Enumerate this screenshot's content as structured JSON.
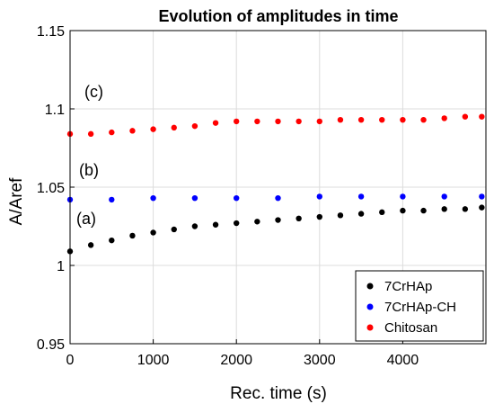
{
  "chart_data": {
    "type": "scatter",
    "title": "Evolution of amplitudes in time",
    "xlabel": "Rec. time (s)",
    "ylabel": "A/Aref",
    "xlim": [
      0,
      5000
    ],
    "ylim": [
      0.95,
      1.15
    ],
    "xticks": [
      0,
      1000,
      2000,
      3000,
      4000
    ],
    "yticks": [
      0.95,
      1,
      1.05,
      1.1,
      1.15
    ],
    "xtick_labels": [
      "0",
      "1000",
      "2000",
      "3000",
      "4000"
    ],
    "ytick_labels": [
      "0.95",
      "1",
      "1.05",
      "1.1",
      "1.15"
    ],
    "grid": true,
    "legend_position": "bottom-right",
    "series": [
      {
        "name": "7CrHAp",
        "color": "#000000",
        "label": "(a)",
        "x": [
          0,
          250,
          500,
          750,
          1000,
          1250,
          1500,
          1750,
          2000,
          2250,
          2500,
          2750,
          3000,
          3250,
          3500,
          3750,
          4000,
          4250,
          4500,
          4750,
          4950
        ],
        "y": [
          1.009,
          1.013,
          1.016,
          1.019,
          1.021,
          1.023,
          1.025,
          1.026,
          1.027,
          1.028,
          1.029,
          1.03,
          1.031,
          1.032,
          1.033,
          1.034,
          1.035,
          1.035,
          1.036,
          1.036,
          1.037
        ]
      },
      {
        "name": "7CrHAp-CH",
        "color": "#0000ff",
        "label": "(b)",
        "x": [
          0,
          500,
          1000,
          1500,
          2000,
          2500,
          3000,
          3500,
          4000,
          4500,
          4950
        ],
        "y": [
          1.042,
          1.042,
          1.043,
          1.043,
          1.043,
          1.043,
          1.044,
          1.044,
          1.044,
          1.044,
          1.044
        ]
      },
      {
        "name": "Chitosan",
        "color": "#ff0000",
        "label": "(c)",
        "x": [
          0,
          250,
          500,
          750,
          1000,
          1250,
          1500,
          1750,
          2000,
          2250,
          2500,
          2750,
          3000,
          3250,
          3500,
          3750,
          4000,
          4250,
          4500,
          4750,
          4950
        ],
        "y": [
          1.084,
          1.084,
          1.085,
          1.086,
          1.087,
          1.088,
          1.089,
          1.091,
          1.092,
          1.092,
          1.092,
          1.092,
          1.092,
          1.093,
          1.093,
          1.093,
          1.093,
          1.093,
          1.094,
          1.095,
          1.095
        ]
      }
    ]
  }
}
